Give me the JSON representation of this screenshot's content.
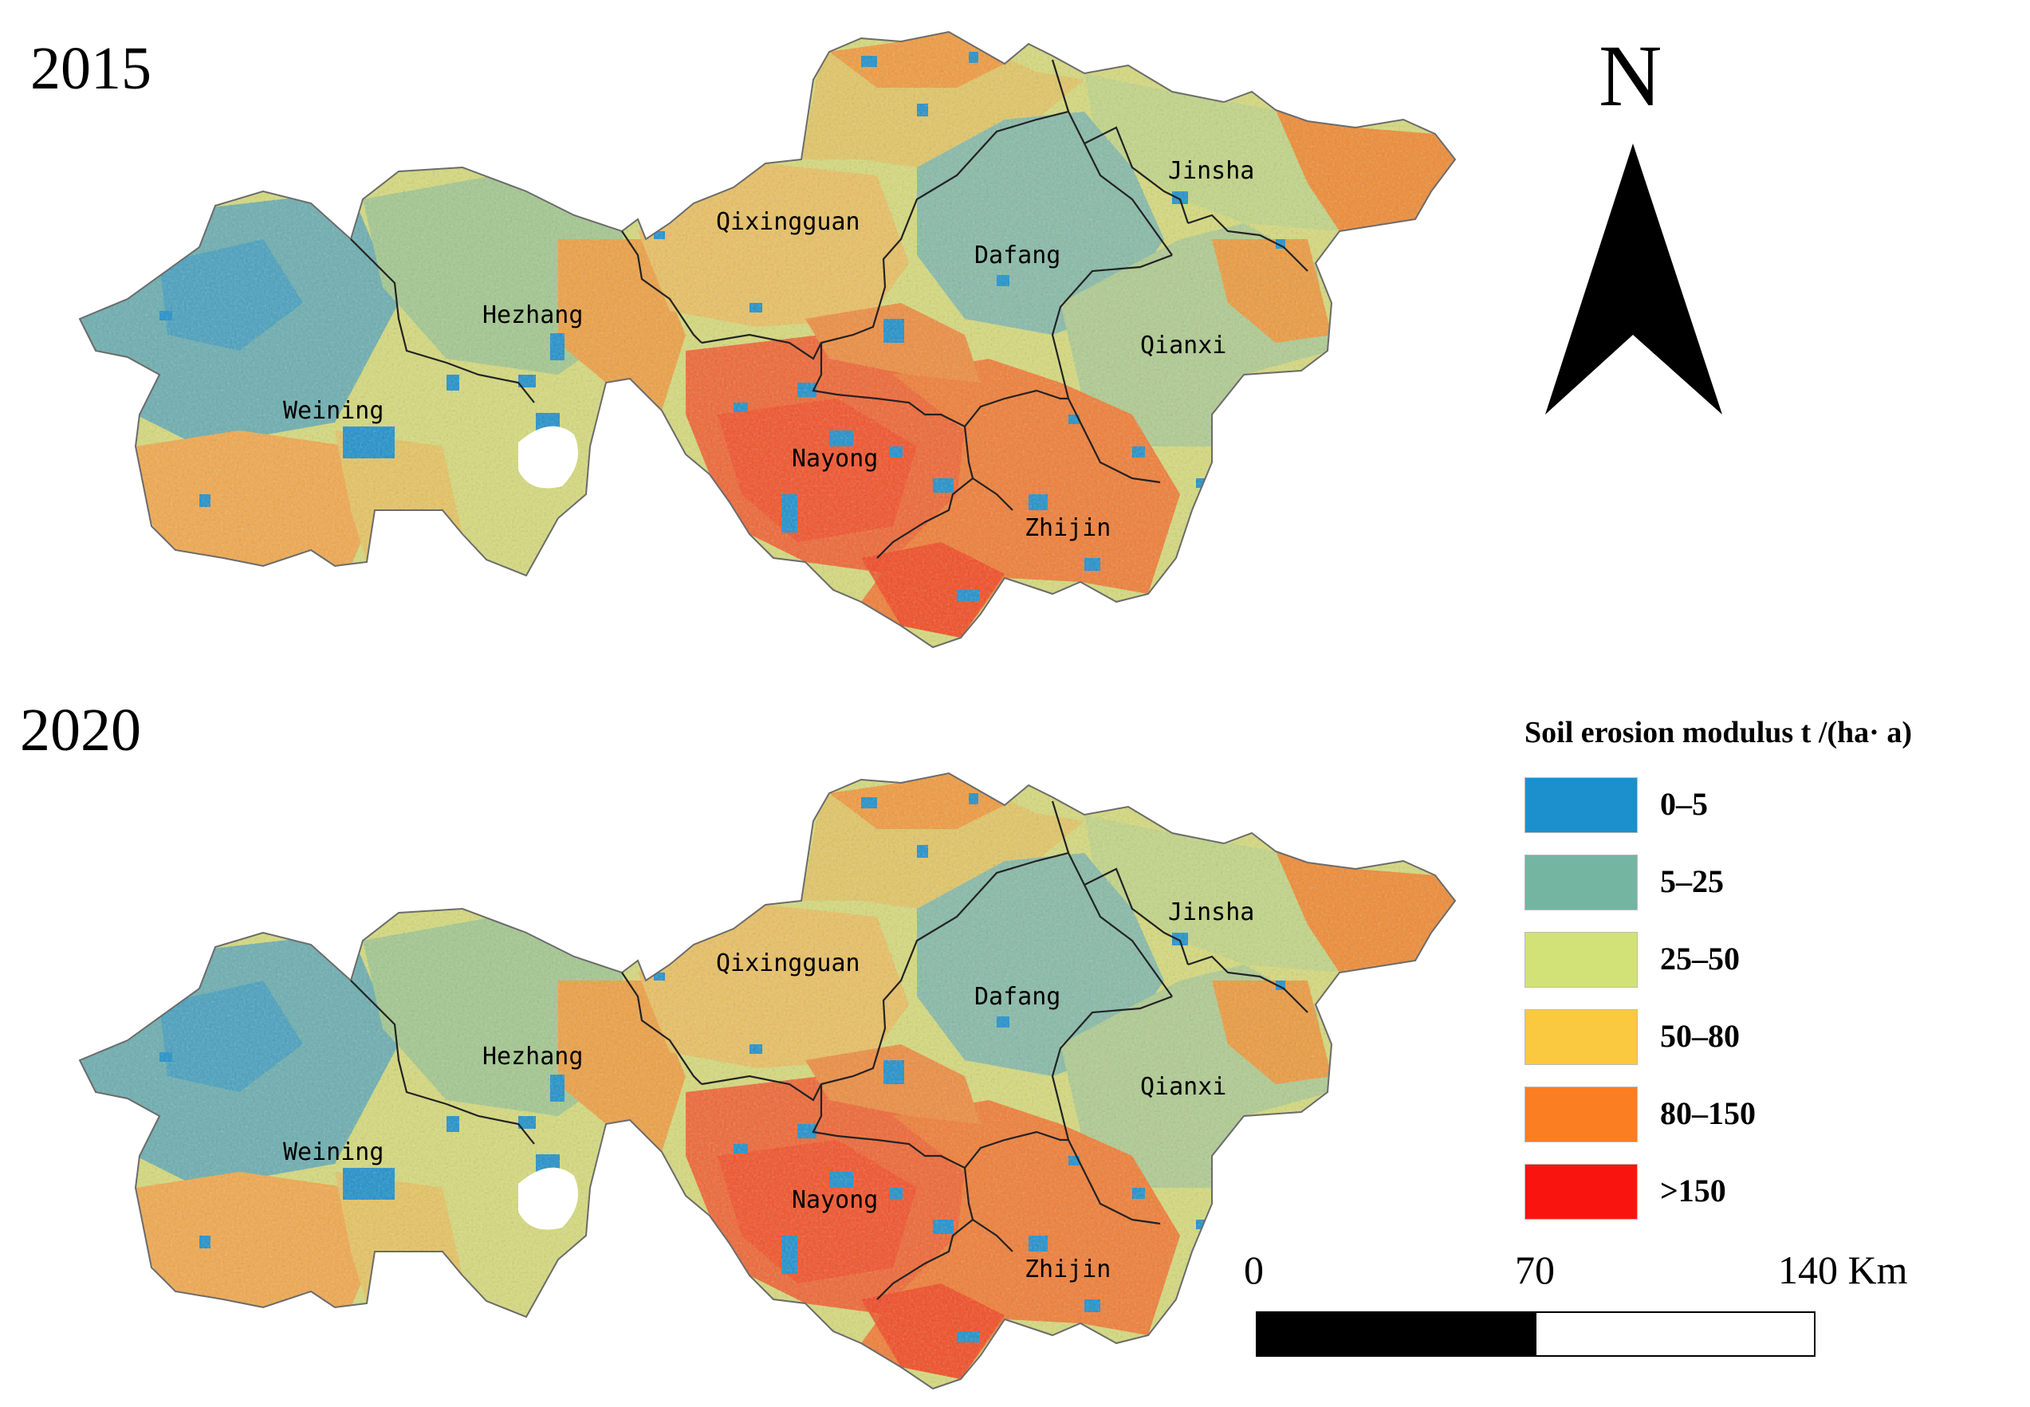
{
  "maps": [
    {
      "year": "2015"
    },
    {
      "year": "2020"
    }
  ],
  "counties": [
    {
      "name": "Weining",
      "id": "weining"
    },
    {
      "name": "Hezhang",
      "id": "hezhang"
    },
    {
      "name": "Qixingguan",
      "id": "qixingguan"
    },
    {
      "name": "Dafang",
      "id": "dafang"
    },
    {
      "name": "Jinsha",
      "id": "jinsha"
    },
    {
      "name": "Qianxi",
      "id": "qianxi"
    },
    {
      "name": "Nayong",
      "id": "nayong"
    },
    {
      "name": "Zhijin",
      "id": "zhijin"
    }
  ],
  "north_arrow": {
    "letter": "N"
  },
  "legend": {
    "title": "Soil erosion modulus t /(ha· a)",
    "classes": [
      {
        "label": "0–5",
        "color": "#1b90cd"
      },
      {
        "label": "5–25",
        "color": "#74b5a2"
      },
      {
        "label": "25–50",
        "color": "#d2e276"
      },
      {
        "label": "50–80",
        "color": "#fbc93f"
      },
      {
        "label": "80–150",
        "color": "#fb7e22"
      },
      {
        "label": ">150",
        "color": "#fa1410"
      }
    ]
  },
  "scale_bar": {
    "ticks": [
      "0",
      "70",
      "140 Km"
    ]
  }
}
